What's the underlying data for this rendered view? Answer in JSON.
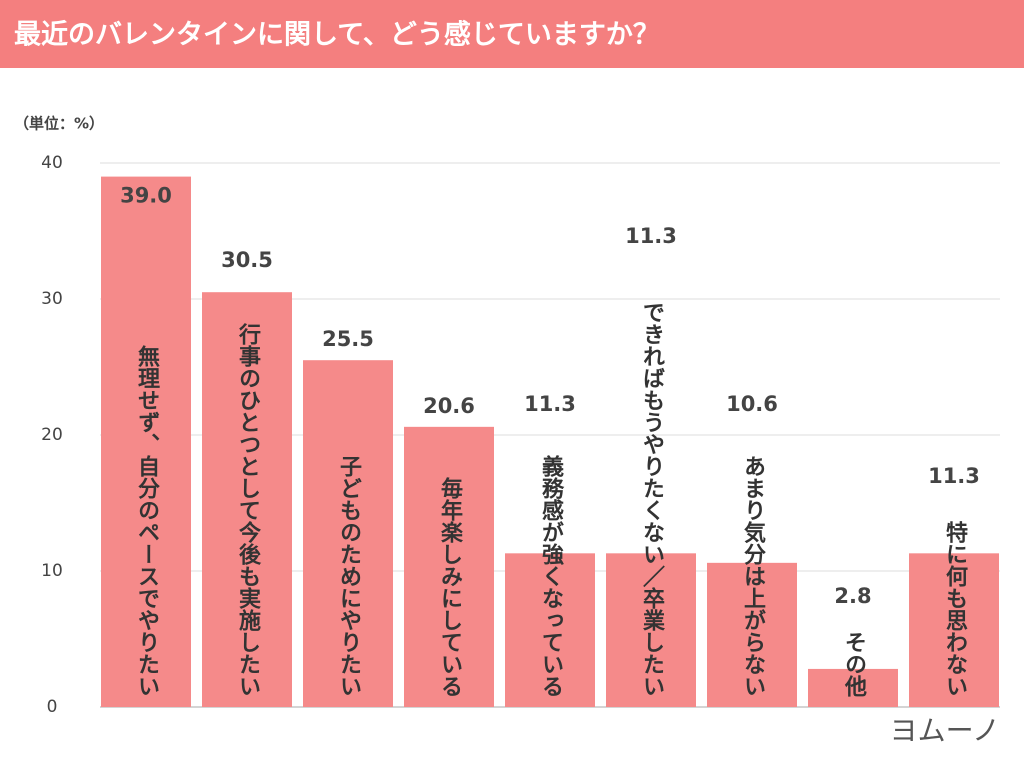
{
  "chart_data": {
    "type": "bar",
    "title": "最近のバレンタインに関して、どう感じていますか？",
    "unit_label": "（単位：%）",
    "logo": "ヨムーノ",
    "categories": [
      "無理せず、自分のペースでやりたい",
      "行事のひとつとして今後も実施したい",
      "子どものためにやりたい",
      "毎年楽しみにしている",
      "義務感が強くなっている",
      "できればもうやりたくない／卒業したい",
      "あまり気分は上がらない",
      "その他",
      "特に何も思わない"
    ],
    "values": [
      39.0,
      30.5,
      25.5,
      20.6,
      11.3,
      11.3,
      10.6,
      2.8,
      11.3
    ],
    "value_labels": [
      "39.0",
      "30.5",
      "25.5",
      "20.6",
      "11.3",
      "11.3",
      "10.6",
      "2.8",
      "11.3"
    ],
    "color": "#f58a8a",
    "ylim": [
      0,
      40
    ],
    "yticks": [
      0,
      10,
      20,
      30,
      40
    ],
    "grid": true
  }
}
